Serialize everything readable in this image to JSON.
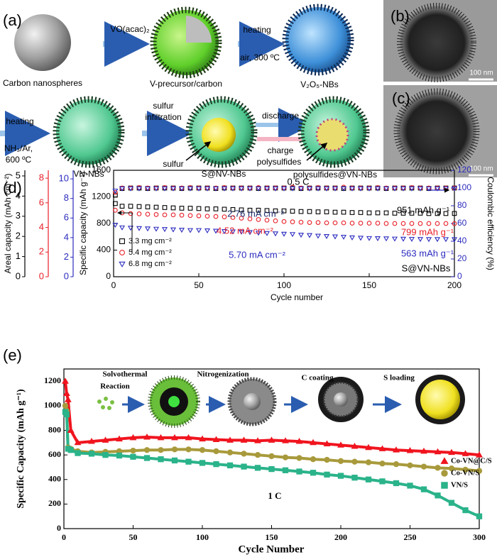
{
  "panel_labels": [
    "(a)",
    "(b)",
    "(c)",
    "(d)",
    "(e)"
  ],
  "schematic_labels": [
    "Carbon nanospheres",
    "VO(acac)₂",
    "V-precursor/carbon",
    "heating",
    "air, 300 ºC",
    "V₂O₅-NBs",
    "heating",
    "NH₃/Ar,",
    "600 ºC",
    "VN-NBs",
    "sulfur",
    "infiltration",
    "sulfur",
    "S@NV-NBs",
    "discharge",
    "charge",
    "polysulfides",
    "polysulfides@VN-NBs"
  ],
  "tem_scale_bars": [
    "100 nm",
    "100 nm"
  ],
  "chart_data": [
    {
      "type": "scatter",
      "x_label": "Cycle number",
      "y_label": "Specific capacity (mAh g⁻¹)",
      "y2_label": "Coulombic efficiency (%)",
      "areal_axis_label": "Areal capacity (mAh cm⁻²)",
      "xlim": [
        0,
        200
      ],
      "xticks": [
        0,
        50,
        100,
        150,
        200
      ],
      "ylim": [
        0,
        1600
      ],
      "yticks": [
        0,
        400,
        800,
        1200,
        1600
      ],
      "y2lim": [
        0,
        120
      ],
      "y2ticks": [
        0,
        20,
        40,
        60,
        80,
        100,
        120
      ],
      "areal_axes": [
        {
          "color": "#000000",
          "lim": [
            0,
            5.28
          ],
          "ticks": [
            0,
            1,
            2,
            3,
            4,
            5
          ]
        },
        {
          "color": "#e8202a",
          "lim": [
            0,
            8.64
          ],
          "ticks": [
            0,
            2,
            4,
            6,
            8
          ]
        },
        {
          "color": "#2b2bbf",
          "lim": [
            0,
            10.88
          ],
          "ticks": [
            0,
            2,
            4,
            6,
            8,
            10
          ]
        }
      ],
      "x": [
        1,
        5,
        10,
        15,
        20,
        25,
        30,
        35,
        40,
        45,
        50,
        55,
        60,
        65,
        70,
        75,
        80,
        85,
        90,
        95,
        100,
        105,
        110,
        115,
        120,
        125,
        130,
        135,
        140,
        145,
        150,
        155,
        160,
        165,
        170,
        175,
        180,
        185,
        190,
        195,
        200
      ],
      "series": [
        {
          "name": "3.3 mg cm⁻²",
          "color": "#000000",
          "marker": "square",
          "values": [
            1100,
            1060,
            1060,
            1055,
            1050,
            1045,
            1040,
            1035,
            1030,
            1030,
            1025,
            1020,
            1020,
            1015,
            1010,
            1005,
            1000,
            1000,
            995,
            990,
            990,
            985,
            980,
            980,
            975,
            975,
            970,
            970,
            965,
            965,
            960,
            960,
            960,
            955,
            955,
            955,
            955,
            950,
            950,
            950,
            951
          ]
        },
        {
          "name": "5.4 mg cm⁻²",
          "color": "#e8202a",
          "marker": "circle",
          "values": [
            1000,
            960,
            950,
            945,
            940,
            935,
            930,
            930,
            925,
            920,
            915,
            910,
            905,
            900,
            890,
            880,
            870,
            860,
            850,
            840,
            830,
            825,
            820,
            815,
            815,
            810,
            810,
            810,
            805,
            805,
            805,
            805,
            800,
            800,
            800,
            800,
            800,
            800,
            800,
            800,
            799
          ]
        },
        {
          "name": "6.8 mg cm⁻²",
          "color": "#2b2bbf",
          "marker": "triangle-down",
          "values": [
            780,
            740,
            735,
            730,
            725,
            720,
            715,
            710,
            705,
            700,
            700,
            695,
            690,
            685,
            680,
            675,
            670,
            660,
            655,
            650,
            645,
            640,
            630,
            625,
            615,
            610,
            605,
            600,
            590,
            585,
            580,
            578,
            575,
            572,
            570,
            568,
            566,
            565,
            565,
            564,
            563
          ]
        },
        {
          "color": "#000000",
          "marker": "square",
          "axis": "y2",
          "values": [
            92,
            99.5,
            100,
            100,
            99.5,
            100,
            100,
            100,
            99.5,
            100,
            100,
            100,
            99.5,
            100,
            100,
            100,
            100,
            99.5,
            100,
            100,
            100,
            100,
            99.5,
            100,
            100,
            100,
            100,
            99.5,
            100,
            100,
            100,
            100,
            99.5,
            100,
            100,
            100,
            100,
            99.5,
            100,
            100,
            100
          ]
        },
        {
          "color": "#e8202a",
          "marker": "circle",
          "axis": "y2",
          "values": [
            95,
            100,
            100,
            100.5,
            100,
            100,
            100.5,
            100,
            100,
            100.5,
            100,
            100,
            100,
            100.5,
            100,
            100,
            100,
            100.5,
            100,
            100,
            100,
            101,
            100,
            100,
            100.5,
            100,
            100,
            101,
            100,
            100,
            100,
            100.5,
            100,
            100,
            100,
            100.5,
            100,
            100,
            100,
            100,
            100
          ]
        },
        {
          "color": "#2b2bbf",
          "marker": "triangle-down",
          "axis": "y2",
          "values": [
            97,
            99.5,
            99.5,
            99.5,
            99.5,
            99.5,
            99.5,
            99.5,
            99.5,
            99.5,
            99.5,
            99.5,
            99.5,
            99.5,
            99.5,
            99.5,
            99.5,
            99.5,
            99.5,
            99.5,
            99.5,
            99.5,
            99.5,
            99.5,
            99.5,
            99.5,
            99.5,
            99.5,
            99.5,
            99.5,
            99.5,
            99.5,
            99.5,
            99.5,
            99.5,
            99.5,
            99.5,
            99.5,
            99.5,
            99.5,
            99.5
          ]
        }
      ],
      "legend": "lower left",
      "annotations": [
        {
          "text": "0.5 C",
          "color": "#000000"
        },
        {
          "text": "2.76 mA cm⁻²",
          "color": "#1f2f6f"
        },
        {
          "text": "951 mAh g⁻¹",
          "color": "#000000"
        },
        {
          "text": "4.52 mA cm⁻²",
          "color": "#e8202a"
        },
        {
          "text": "799 mAh g⁻¹",
          "color": "#e8202a"
        },
        {
          "text": "5.70 mA cm⁻²",
          "color": "#2b2bbf"
        },
        {
          "text": "563 mAh g⁻¹",
          "color": "#2b2bbf"
        },
        {
          "text": "S@VN-NBs",
          "color": "#000000"
        }
      ]
    },
    {
      "type": "line",
      "x_label": "Cycle Number",
      "y_label": "Specific Capacity (mAh g⁻¹)",
      "xlim": [
        0,
        300
      ],
      "xticks": [
        0,
        50,
        100,
        150,
        200,
        250,
        300
      ],
      "ylim": [
        0,
        1300
      ],
      "yticks": [
        0,
        200,
        400,
        600,
        800,
        1000,
        1200
      ],
      "x": [
        1,
        2,
        3,
        5,
        10,
        20,
        30,
        40,
        50,
        60,
        70,
        80,
        90,
        100,
        110,
        120,
        130,
        140,
        150,
        160,
        170,
        180,
        190,
        200,
        210,
        220,
        230,
        240,
        250,
        260,
        270,
        280,
        290,
        300
      ],
      "series": [
        {
          "name": "Co-VN@C/S",
          "color": "#f0141e",
          "marker": "triangle",
          "values": [
            1200,
            1100,
            1050,
            800,
            700,
            710,
            720,
            730,
            740,
            745,
            740,
            740,
            740,
            730,
            725,
            720,
            720,
            715,
            720,
            715,
            710,
            700,
            690,
            680,
            670,
            660,
            650,
            640,
            635,
            630,
            625,
            620,
            610,
            600
          ]
        },
        {
          "name": "Co-VN/S",
          "color": "#a89a3c",
          "marker": "circle",
          "values": [
            1000,
            960,
            660,
            650,
            630,
            620,
            625,
            630,
            635,
            640,
            640,
            645,
            645,
            640,
            630,
            620,
            610,
            600,
            590,
            580,
            575,
            565,
            560,
            550,
            545,
            540,
            530,
            525,
            515,
            505,
            495,
            490,
            480,
            470
          ]
        },
        {
          "name": "VN/S",
          "color": "#2bb38a",
          "marker": "square",
          "values": [
            950,
            930,
            650,
            640,
            615,
            610,
            600,
            595,
            585,
            575,
            565,
            555,
            545,
            535,
            525,
            515,
            505,
            495,
            485,
            475,
            465,
            455,
            440,
            430,
            415,
            400,
            385,
            370,
            350,
            320,
            270,
            210,
            150,
            100
          ]
        }
      ],
      "legend": "right",
      "annotations": [
        "1 C"
      ],
      "inset_labels": [
        "Solvothermal",
        "Reaction",
        "Nitrogenization",
        "C coating",
        "S loading"
      ]
    }
  ]
}
